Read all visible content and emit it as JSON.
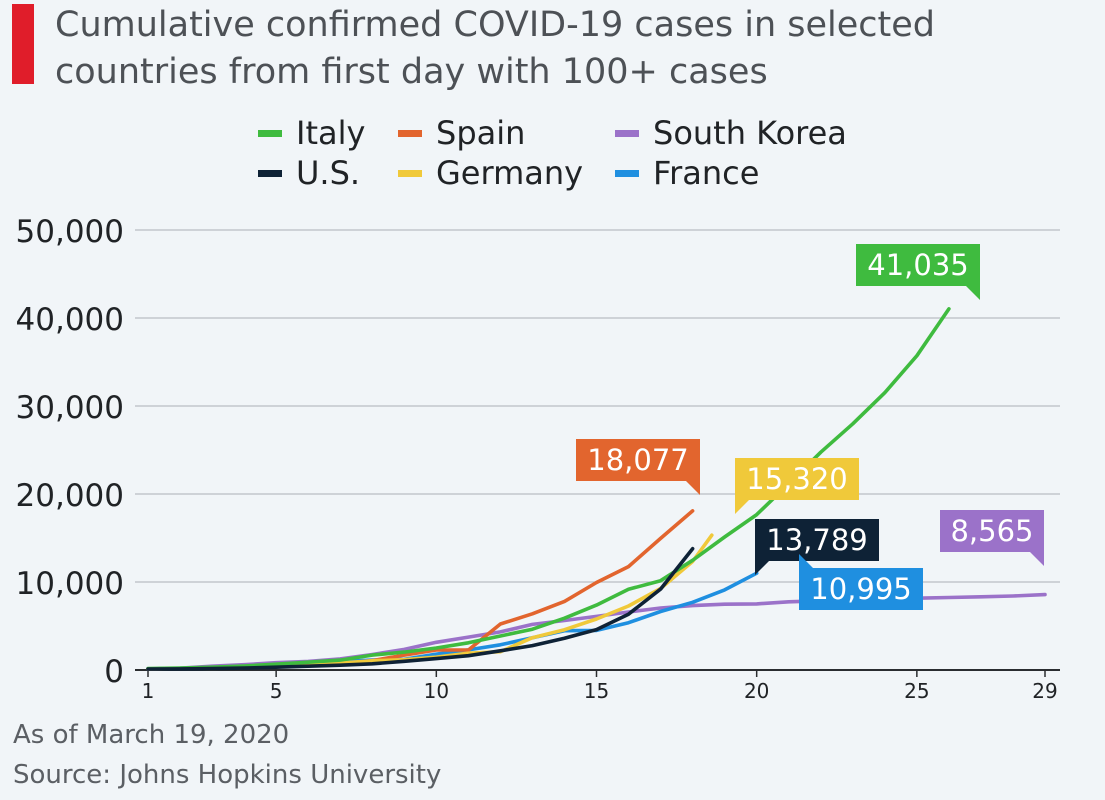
{
  "header": {
    "title": "Cumulative confirmed COVID-19 cases in selected\ncountries from first day with 100+ cases",
    "accent_color": "#e01d2a"
  },
  "footer": {
    "date_note": "As of March 19, 2020",
    "source": "Source: Johns Hopkins University"
  },
  "chart_data": {
    "type": "line",
    "title": "Cumulative confirmed COVID-19 cases in selected countries from first day with 100+ cases",
    "xlabel": "",
    "ylabel": "",
    "xlim": [
      1,
      29
    ],
    "ylim": [
      0,
      50000
    ],
    "x_ticks": [
      1,
      5,
      10,
      15,
      20,
      25,
      29
    ],
    "x_tick_labels": [
      "1",
      "5",
      "10",
      "15",
      "20",
      "25",
      "29"
    ],
    "y_ticks": [
      0,
      10000,
      20000,
      30000,
      40000,
      50000
    ],
    "y_tick_labels": [
      "0",
      "10,000",
      "20,000",
      "30,000",
      "40,000",
      "50,000"
    ],
    "grid": true,
    "legend_position": "top",
    "series": [
      {
        "name": "Italy",
        "color": "#3fbb3f",
        "end_label": "41,035",
        "x": [
          1,
          2,
          3,
          4,
          5,
          6,
          7,
          8,
          9,
          10,
          11,
          12,
          13,
          14,
          15,
          16,
          17,
          18,
          19,
          20,
          21,
          22,
          23,
          24,
          25,
          26
        ],
        "y": [
          155,
          229,
          322,
          453,
          655,
          888,
          1128,
          1694,
          2036,
          2502,
          3089,
          3858,
          4636,
          5883,
          7375,
          9172,
          10149,
          12462,
          15113,
          17660,
          21157,
          24747,
          27980,
          31506,
          35713,
          41035
        ]
      },
      {
        "name": "Spain",
        "color": "#e2652e",
        "end_label": "18,077",
        "x": [
          1,
          2,
          3,
          4,
          5,
          6,
          7,
          8,
          9,
          10,
          11,
          12,
          13,
          14,
          15,
          16,
          17,
          18
        ],
        "y": [
          120,
          165,
          222,
          259,
          400,
          500,
          673,
          1073,
          1695,
          2277,
          2277,
          5232,
          6391,
          7798,
          9942,
          11748,
          14960,
          18077
        ]
      },
      {
        "name": "South Korea",
        "color": "#9b72c9",
        "end_label": "8,565",
        "x": [
          1,
          2,
          3,
          4,
          5,
          6,
          7,
          8,
          9,
          10,
          11,
          12,
          13,
          14,
          15,
          16,
          17,
          18,
          19,
          20,
          21,
          22,
          23,
          24,
          25,
          26,
          27,
          28,
          29
        ],
        "y": [
          104,
          204,
          433,
          602,
          833,
          977,
          1261,
          1766,
          2337,
          3150,
          3736,
          4335,
          5186,
          5621,
          6088,
          6593,
          7041,
          7314,
          7478,
          7513,
          7755,
          7869,
          7979,
          8086,
          8162,
          8236,
          8320,
          8413,
          8565
        ]
      },
      {
        "name": "U.S.",
        "color": "#0e2236",
        "end_label": "13,789",
        "x": [
          1,
          2,
          3,
          4,
          5,
          6,
          7,
          8,
          9,
          10,
          11,
          12,
          13,
          14,
          15,
          16,
          17,
          18
        ],
        "y": [
          100,
          124,
          158,
          221,
          319,
          435,
          541,
          704,
          994,
          1301,
          1630,
          2183,
          2770,
          3613,
          4596,
          6344,
          9197,
          13789
        ]
      },
      {
        "name": "Germany",
        "color": "#f0c93a",
        "end_label": "15,320",
        "x": [
          1,
          2,
          3,
          4,
          5,
          6,
          7,
          8,
          9,
          10,
          11,
          12,
          13,
          14,
          15,
          16,
          17,
          18,
          18.6
        ],
        "y": [
          130,
          159,
          196,
          262,
          482,
          670,
          799,
          1040,
          1176,
          1457,
          1908,
          2078,
          3675,
          4585,
          5795,
          7272,
          9257,
          12327,
          15320
        ]
      },
      {
        "name": "France",
        "color": "#1f8fe0",
        "end_label": "10,995",
        "x": [
          1,
          2,
          3,
          4,
          5,
          6,
          7,
          8,
          9,
          10,
          11,
          12,
          13,
          14,
          15,
          16,
          17,
          18,
          19,
          20
        ],
        "y": [
          130,
          191,
          204,
          288,
          380,
          656,
          957,
          1136,
          1219,
          1794,
          2284,
          2868,
          3660,
          4469,
          4499,
          5380,
          6650,
          7690,
          9100,
          10995
        ]
      }
    ]
  }
}
